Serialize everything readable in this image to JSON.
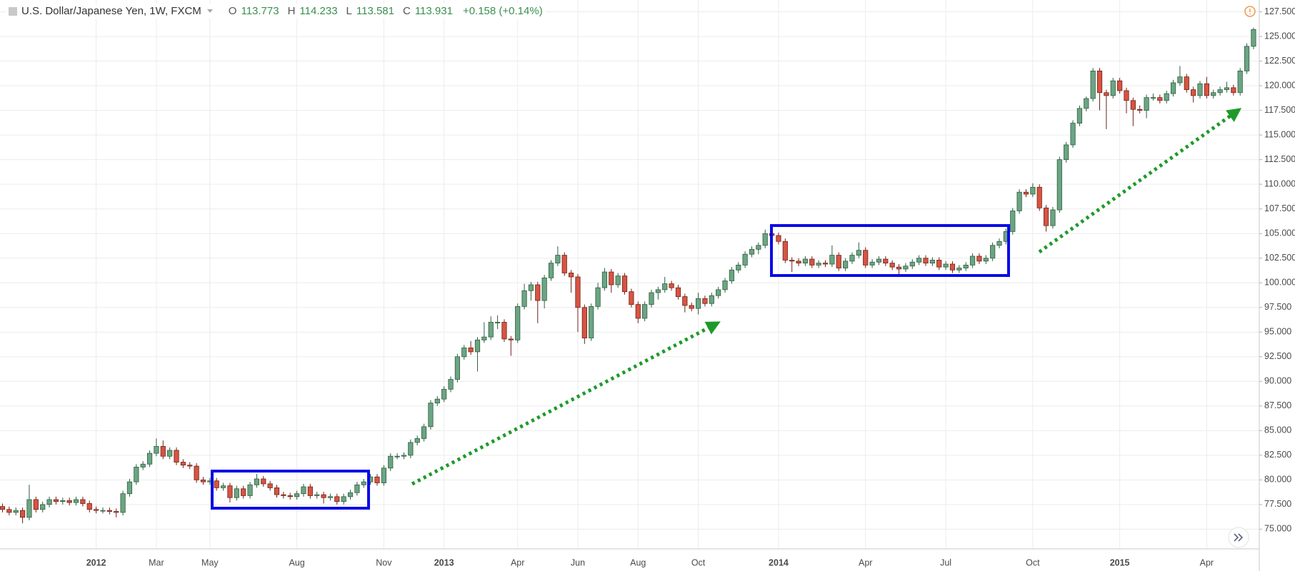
{
  "chart_data": {
    "type": "candlestick",
    "title": "U.S. Dollar/Japanese Yen, 1W, FXCM",
    "ohlc_header": [
      {
        "key": "O",
        "value": 113.773
      },
      {
        "key": "H",
        "value": 114.233
      },
      {
        "key": "L",
        "value": 113.581
      },
      {
        "key": "C",
        "value": 113.931
      }
    ],
    "change": "+0.158 (+0.14%)",
    "up_color": "#6ba583",
    "down_color": "#d75442",
    "grid": true,
    "ylim": [
      73.0,
      128.7
    ],
    "yticks": [
      {
        "value": 75,
        "label": "75.000"
      },
      {
        "value": 77.5,
        "label": "77.500"
      },
      {
        "value": 80,
        "label": "80.000"
      },
      {
        "value": 82.5,
        "label": "82.500"
      },
      {
        "value": 85,
        "label": "85.000"
      },
      {
        "value": 87.5,
        "label": "87.500"
      },
      {
        "value": 90,
        "label": "90.000"
      },
      {
        "value": 92.5,
        "label": "92.500"
      },
      {
        "value": 95,
        "label": "95.000"
      },
      {
        "value": 97.5,
        "label": "97.500"
      },
      {
        "value": 100,
        "label": "100.000"
      },
      {
        "value": 102.5,
        "label": "102.500"
      },
      {
        "value": 105,
        "label": "105.000"
      },
      {
        "value": 107.5,
        "label": "107.500"
      },
      {
        "value": 110,
        "label": "110.000"
      },
      {
        "value": 112.5,
        "label": "112.500"
      },
      {
        "value": 115,
        "label": "115.000"
      },
      {
        "value": 117.5,
        "label": "117.500"
      },
      {
        "value": 120,
        "label": "120.000"
      },
      {
        "value": 122.5,
        "label": "122.500"
      },
      {
        "value": 125,
        "label": "125.000"
      },
      {
        "value": 127.5,
        "label": "127.500"
      }
    ],
    "categories": [
      null,
      null,
      null,
      null,
      null,
      null,
      null,
      null,
      null,
      null,
      null,
      null,
      null,
      null,
      "2012",
      null,
      null,
      null,
      null,
      null,
      null,
      null,
      null,
      "Mar",
      null,
      null,
      null,
      null,
      null,
      null,
      null,
      "May",
      null,
      null,
      null,
      null,
      null,
      null,
      null,
      null,
      null,
      null,
      null,
      null,
      "Aug",
      null,
      null,
      null,
      null,
      null,
      null,
      null,
      null,
      null,
      null,
      null,
      null,
      "Nov",
      null,
      null,
      null,
      null,
      null,
      null,
      null,
      null,
      "2013",
      null,
      null,
      null,
      null,
      null,
      null,
      null,
      null,
      null,
      null,
      "Apr",
      null,
      null,
      null,
      null,
      null,
      null,
      null,
      null,
      "Jun",
      null,
      null,
      null,
      null,
      null,
      null,
      null,
      null,
      "Aug",
      null,
      null,
      null,
      null,
      null,
      null,
      null,
      null,
      "Oct",
      null,
      null,
      null,
      null,
      null,
      null,
      null,
      null,
      null,
      null,
      null,
      "2014",
      null,
      null,
      null,
      null,
      null,
      null,
      null,
      null,
      null,
      null,
      null,
      null,
      "Apr",
      null,
      null,
      null,
      null,
      null,
      null,
      null,
      null,
      null,
      null,
      null,
      "Jul",
      null,
      null,
      null,
      null,
      null,
      null,
      null,
      null,
      null,
      null,
      null,
      null,
      "Oct",
      null,
      null,
      null,
      null,
      null,
      null,
      null,
      null,
      null,
      null,
      null,
      null,
      "2015",
      null,
      null,
      null,
      null,
      null,
      null,
      null,
      null,
      null,
      null,
      null,
      null,
      "Apr",
      null,
      null,
      null,
      null,
      null,
      null,
      null
    ],
    "open": [
      77.3,
      77.0,
      76.7,
      76.9,
      76.2,
      78.0,
      77.0,
      77.5,
      78.0,
      77.8,
      77.9,
      77.7,
      78.0,
      77.6,
      77.0,
      76.9,
      76.9,
      76.8,
      76.7,
      78.6,
      79.8,
      81.3,
      81.6,
      82.7,
      83.4,
      82.4,
      83.0,
      81.8,
      81.5,
      81.4,
      80.0,
      79.8,
      79.9,
      79.2,
      79.4,
      78.2,
      79.1,
      78.4,
      79.5,
      80.1,
      79.6,
      79.2,
      78.5,
      78.4,
      78.3,
      78.6,
      79.3,
      78.4,
      78.5,
      78.2,
      78.3,
      77.8,
      78.3,
      78.7,
      79.5,
      79.8,
      80.3,
      79.7,
      81.2,
      82.4,
      82.4,
      82.5,
      83.8,
      84.2,
      85.4,
      87.8,
      88.2,
      89.2,
      90.2,
      92.5,
      93.4,
      93.0,
      94.2,
      94.5,
      96.0,
      96.0,
      94.3,
      94.2,
      97.6,
      99.2,
      99.8,
      98.2,
      100.5,
      102.0,
      102.8,
      101.0,
      100.6,
      97.5,
      94.4,
      97.6,
      99.5,
      101.1,
      99.8,
      100.7,
      99.1,
      97.8,
      96.4,
      97.8,
      99.0,
      99.3,
      99.9,
      99.5,
      98.6,
      97.7,
      97.4,
      98.4,
      97.9,
      98.7,
      99.3,
      100.2,
      101.3,
      101.8,
      102.9,
      103.4,
      103.8,
      105.0,
      104.8,
      104.2,
      102.3,
      102.2,
      102.0,
      102.4,
      101.8,
      102.0,
      101.9,
      102.8,
      101.5,
      102.2,
      102.8,
      103.3,
      101.8,
      102.1,
      102.4,
      102.0,
      101.6,
      101.4,
      101.7,
      102.1,
      102.5,
      102.0,
      102.3,
      101.6,
      101.9,
      101.3,
      101.5,
      101.8,
      102.7,
      102.2,
      102.5,
      103.8,
      104.2,
      105.2,
      107.3,
      109.2,
      109.0,
      109.7,
      107.6,
      105.8,
      107.4,
      112.5,
      114.0,
      116.2,
      117.7,
      118.7,
      121.5,
      119.3,
      119.0,
      120.5,
      119.5,
      118.5,
      117.6,
      117.5,
      118.8,
      118.8,
      118.5,
      119.2,
      120.3,
      120.9,
      119.6,
      119.0,
      120.2,
      119.0,
      119.3,
      119.6,
      119.8,
      119.3,
      121.5,
      124.0
    ],
    "high": [
      77.6,
      77.3,
      77.2,
      77.2,
      79.5,
      78.3,
      77.8,
      78.3,
      78.3,
      78.2,
      78.2,
      78.3,
      78.3,
      77.9,
      77.3,
      77.2,
      77.2,
      77.1,
      78.9,
      80.1,
      81.6,
      81.9,
      83.0,
      84.2,
      84.0,
      83.3,
      83.3,
      82.1,
      81.8,
      81.7,
      80.3,
      80.2,
      80.2,
      79.7,
      79.7,
      79.4,
      79.4,
      79.8,
      80.6,
      80.4,
      79.9,
      79.5,
      78.8,
      78.7,
      78.9,
      79.6,
      79.6,
      78.8,
      78.8,
      78.6,
      78.6,
      78.6,
      79.0,
      79.8,
      80.1,
      80.6,
      80.6,
      81.5,
      82.7,
      82.7,
      82.8,
      84.1,
      84.5,
      85.7,
      88.1,
      88.5,
      89.5,
      90.5,
      92.8,
      93.7,
      94.1,
      94.5,
      96.0,
      96.6,
      96.7,
      96.3,
      94.6,
      97.9,
      99.9,
      100.1,
      100.1,
      100.8,
      102.3,
      103.7,
      103.1,
      101.3,
      100.9,
      97.8,
      97.9,
      100.0,
      101.5,
      101.4,
      101.0,
      101.0,
      99.4,
      98.1,
      98.1,
      99.3,
      99.6,
      100.6,
      100.2,
      99.8,
      98.9,
      98.0,
      99.0,
      98.7,
      99.0,
      99.6,
      100.5,
      101.6,
      102.1,
      103.2,
      103.7,
      104.1,
      105.4,
      105.3,
      105.1,
      104.5,
      102.6,
      102.5,
      102.7,
      102.7,
      102.3,
      102.3,
      103.8,
      103.1,
      102.5,
      103.1,
      104.1,
      103.6,
      102.4,
      102.7,
      102.7,
      102.3,
      101.9,
      102.0,
      102.4,
      102.8,
      102.8,
      102.6,
      102.6,
      102.2,
      102.2,
      101.8,
      102.1,
      103.0,
      103.0,
      102.8,
      104.1,
      104.5,
      105.5,
      107.6,
      109.5,
      109.5,
      110.1,
      110.0,
      107.9,
      107.7,
      112.8,
      114.3,
      116.5,
      118.0,
      118.9,
      121.8,
      121.8,
      119.6,
      120.8,
      120.8,
      119.8,
      118.8,
      118.0,
      119.1,
      119.2,
      119.1,
      119.5,
      120.6,
      122.0,
      121.2,
      119.9,
      120.5,
      120.9,
      119.6,
      119.9,
      120.4,
      120.1,
      121.8,
      124.3,
      125.9
    ],
    "low": [
      76.7,
      76.4,
      76.4,
      75.6,
      75.9,
      76.7,
      76.7,
      77.2,
      77.5,
      77.5,
      77.4,
      77.4,
      77.3,
      76.7,
      76.6,
      76.6,
      76.5,
      76.2,
      76.4,
      78.3,
      79.5,
      81.0,
      81.3,
      82.4,
      82.1,
      82.1,
      81.5,
      81.2,
      81.1,
      79.7,
      79.5,
      79.5,
      78.9,
      78.9,
      77.7,
      77.9,
      78.1,
      78.1,
      79.2,
      79.3,
      78.9,
      78.2,
      78.1,
      78.0,
      78.0,
      78.3,
      78.1,
      78.1,
      77.6,
      77.9,
      77.5,
      77.5,
      78.0,
      78.4,
      79.2,
      79.5,
      79.4,
      79.4,
      80.9,
      82.1,
      82.1,
      82.2,
      83.5,
      83.9,
      85.1,
      87.5,
      87.9,
      88.9,
      89.9,
      92.2,
      92.7,
      91.0,
      93.9,
      94.2,
      95.3,
      94.0,
      92.6,
      93.9,
      97.3,
      98.2,
      95.9,
      97.4,
      100.2,
      101.7,
      100.7,
      99.0,
      95.0,
      93.8,
      94.1,
      97.3,
      99.2,
      99.0,
      99.5,
      98.8,
      97.5,
      95.9,
      96.1,
      97.5,
      98.3,
      99.0,
      99.2,
      98.3,
      97.0,
      97.1,
      96.8,
      97.6,
      97.6,
      98.4,
      99.0,
      99.9,
      101.0,
      101.5,
      102.6,
      102.9,
      103.5,
      104.5,
      103.9,
      102.0,
      101.1,
      101.7,
      101.7,
      101.5,
      101.5,
      101.6,
      101.6,
      101.2,
      101.2,
      101.9,
      102.5,
      101.5,
      101.5,
      101.8,
      101.7,
      101.3,
      100.8,
      101.1,
      101.4,
      101.8,
      101.7,
      101.7,
      101.3,
      101.3,
      101.0,
      101.0,
      101.2,
      101.5,
      101.9,
      101.9,
      102.2,
      103.5,
      103.9,
      104.9,
      107.0,
      108.7,
      108.7,
      107.3,
      105.2,
      105.5,
      107.1,
      112.2,
      113.7,
      115.9,
      117.4,
      118.4,
      117.5,
      115.6,
      118.7,
      119.2,
      117.2,
      115.9,
      117.2,
      116.7,
      118.5,
      118.2,
      118.2,
      118.9,
      120.0,
      119.3,
      118.3,
      118.7,
      118.7,
      118.7,
      119.0,
      119.3,
      119.0,
      119.0,
      121.2,
      123.7
    ],
    "close": [
      77.0,
      76.7,
      76.9,
      76.2,
      78.0,
      77.0,
      77.5,
      78.0,
      77.8,
      77.9,
      77.7,
      78.0,
      77.6,
      77.0,
      76.9,
      76.9,
      76.8,
      76.7,
      78.6,
      79.8,
      81.3,
      81.6,
      82.7,
      83.4,
      82.4,
      83.0,
      81.8,
      81.5,
      81.4,
      80.0,
      79.8,
      79.9,
      79.2,
      79.4,
      78.2,
      79.1,
      78.4,
      79.5,
      80.1,
      79.6,
      79.2,
      78.5,
      78.4,
      78.3,
      78.6,
      79.3,
      78.4,
      78.5,
      78.2,
      78.3,
      77.8,
      78.3,
      78.7,
      79.5,
      79.8,
      80.3,
      79.7,
      81.2,
      82.4,
      82.4,
      82.5,
      83.8,
      84.2,
      85.4,
      87.8,
      88.2,
      89.2,
      90.2,
      92.5,
      93.4,
      93.0,
      94.2,
      94.5,
      96.0,
      96.0,
      94.3,
      94.2,
      97.6,
      99.2,
      99.8,
      98.2,
      100.5,
      102.0,
      102.8,
      101.0,
      100.6,
      97.5,
      94.4,
      97.6,
      99.5,
      101.1,
      99.8,
      100.7,
      99.1,
      97.8,
      96.4,
      97.8,
      99.0,
      99.3,
      99.9,
      99.5,
      98.6,
      97.7,
      97.4,
      98.4,
      97.9,
      98.7,
      99.3,
      100.2,
      101.3,
      101.8,
      102.9,
      103.4,
      103.8,
      105.0,
      104.8,
      104.2,
      102.3,
      102.2,
      102.0,
      102.4,
      101.8,
      102.0,
      101.9,
      102.8,
      101.5,
      102.2,
      102.8,
      103.3,
      101.8,
      102.1,
      102.4,
      102.0,
      101.6,
      101.4,
      101.7,
      102.1,
      102.5,
      102.0,
      102.3,
      101.6,
      101.9,
      101.3,
      101.5,
      101.8,
      102.7,
      102.2,
      102.5,
      103.8,
      104.2,
      105.2,
      107.3,
      109.2,
      109.0,
      109.7,
      107.6,
      105.8,
      107.4,
      112.5,
      114.0,
      116.2,
      117.7,
      118.7,
      121.5,
      119.3,
      119.0,
      120.5,
      119.5,
      118.5,
      117.6,
      117.5,
      118.8,
      118.8,
      118.5,
      119.2,
      120.3,
      120.9,
      119.6,
      119.0,
      120.2,
      119.0,
      119.3,
      119.6,
      119.8,
      119.3,
      121.5,
      124.0,
      125.7
    ]
  }
}
